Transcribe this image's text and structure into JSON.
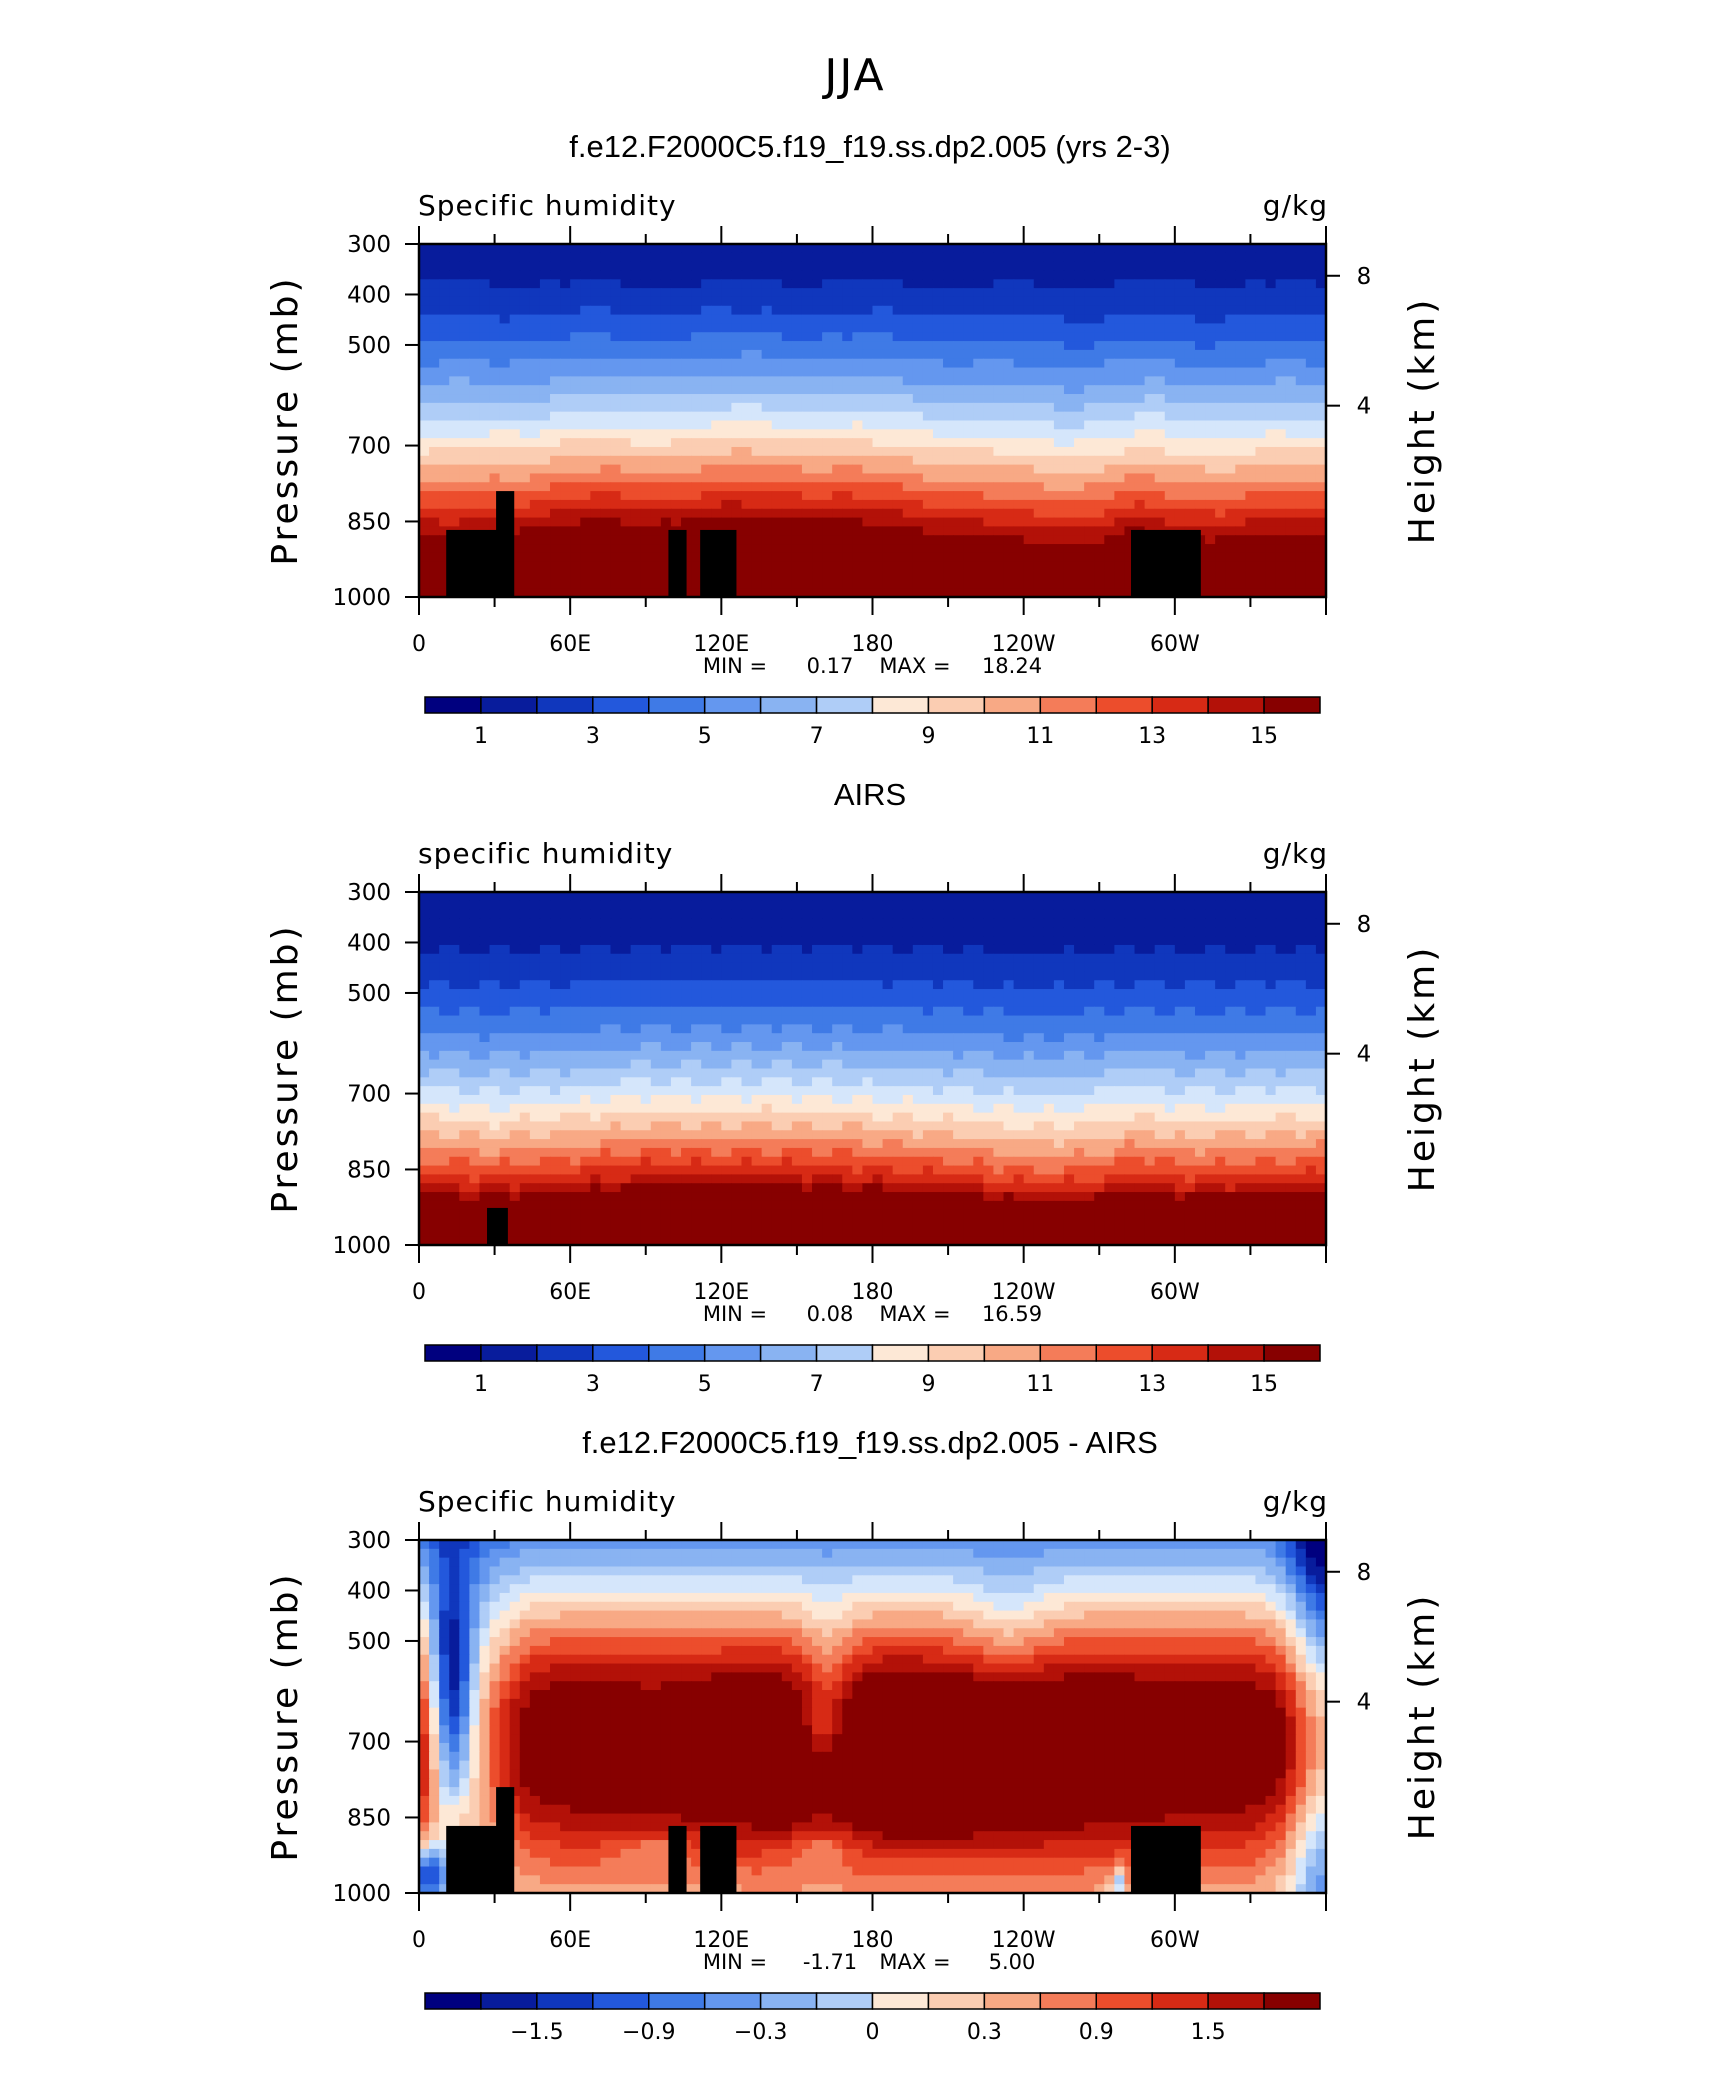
{
  "title": "JJA",
  "colors": {
    "palette": [
      "#00007f",
      "#081c9c",
      "#1037bd",
      "#2358dc",
      "#3f7ae6",
      "#6497ef",
      "#89b3f2",
      "#afcdf7",
      "#d5e6fb",
      "#fde8d6",
      "#fbcdb2",
      "#f8a985",
      "#f47c59",
      "#ec4d2c",
      "#d72a15",
      "#b31108",
      "#870000"
    ]
  },
  "chart_data": [
    {
      "type": "heatmap",
      "title": "f.e12.F2000C5.f19_f19.ss.dp2.005 (yrs 2-3)",
      "left_label": "Specific humidity",
      "units": "g/kg",
      "ylabel": "Pressure (mb)",
      "ylabel_right": "Height (km)",
      "x_ticks": [
        "0",
        "60E",
        "120E",
        "180",
        "120W",
        "60W"
      ],
      "y_ticks": [
        "300",
        "400",
        "500",
        "700",
        "850",
        "1000"
      ],
      "y_right_ticks": [
        "8",
        "4"
      ],
      "stats": {
        "min_label": "MIN =",
        "min": "0.17",
        "max_label": "MAX =",
        "max": "18.24"
      },
      "colorbar_labels": [
        "1",
        "3",
        "5",
        "7",
        "9",
        "11",
        "13",
        "15"
      ]
    },
    {
      "type": "heatmap",
      "title": "AIRS",
      "left_label": "specific humidity",
      "units": "g/kg",
      "ylabel": "Pressure (mb)",
      "ylabel_right": "Height (km)",
      "x_ticks": [
        "0",
        "60E",
        "120E",
        "180",
        "120W",
        "60W"
      ],
      "y_ticks": [
        "300",
        "400",
        "500",
        "700",
        "850",
        "1000"
      ],
      "y_right_ticks": [
        "8",
        "4"
      ],
      "stats": {
        "min_label": "MIN =",
        "min": "0.08",
        "max_label": "MAX =",
        "max": "16.59"
      },
      "colorbar_labels": [
        "1",
        "3",
        "5",
        "7",
        "9",
        "11",
        "13",
        "15"
      ]
    },
    {
      "type": "heatmap",
      "title": "f.e12.F2000C5.f19_f19.ss.dp2.005 - AIRS",
      "left_label": "Specific humidity",
      "units": "g/kg",
      "ylabel": "Pressure (mb)",
      "ylabel_right": "Height (km)",
      "x_ticks": [
        "0",
        "60E",
        "120E",
        "180",
        "120W",
        "60W"
      ],
      "y_ticks": [
        "300",
        "400",
        "500",
        "700",
        "850",
        "1000"
      ],
      "y_right_ticks": [
        "8",
        "4"
      ],
      "stats": {
        "min_label": "MIN =",
        "min": "-1.71",
        "max_label": "MAX =",
        "max": "5.00"
      },
      "colorbar_labels": [
        "−1.5",
        "−0.9",
        "−0.3",
        "0",
        "0.3",
        "0.9",
        "1.5"
      ]
    }
  ]
}
